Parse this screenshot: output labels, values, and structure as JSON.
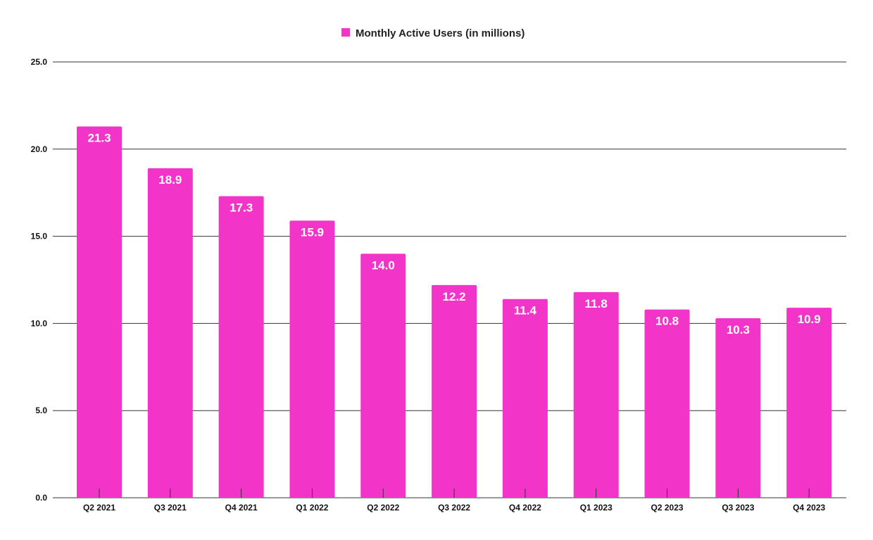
{
  "chart_data": {
    "type": "bar",
    "categories": [
      "Q2 2021",
      "Q3 2021",
      "Q4 2021",
      "Q1 2022",
      "Q2 2022",
      "Q3 2022",
      "Q4 2022",
      "Q1 2023",
      "Q2 2023",
      "Q3 2023",
      "Q4 2023"
    ],
    "series": [
      {
        "name": "Monthly Active Users (in millions)",
        "values": [
          21.3,
          18.9,
          17.3,
          15.9,
          14.0,
          12.2,
          11.4,
          11.8,
          10.8,
          10.3,
          10.9
        ],
        "data_labels": [
          "21.3",
          "18.9",
          "17.3",
          "15.9",
          "14.0",
          "12.2",
          "11.4",
          "11.8",
          "10.8",
          "10.3",
          "10.9"
        ]
      }
    ],
    "ylim": [
      0,
      25
    ],
    "y_ticks": [
      "0.0",
      "5.0",
      "10.0",
      "15.0",
      "20.0",
      "25.0"
    ],
    "xlabel": "",
    "ylabel": "",
    "grid": true,
    "legend_position": "top-center",
    "bar_color": "#F234C8",
    "grid_color": "#333333"
  }
}
